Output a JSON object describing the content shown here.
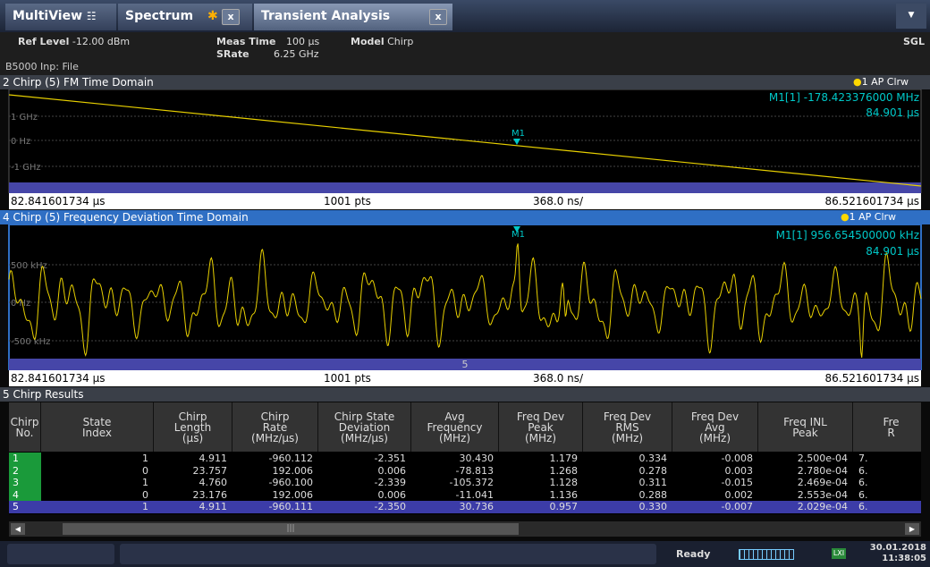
{
  "tabs": [
    "MultiView",
    "Spectrum",
    "Transient Analysis"
  ],
  "info": {
    "ref_level_label": "Ref Level",
    "ref_level": "-12.00 dBm",
    "meas_time_label": "Meas Time",
    "meas_time": "100 µs",
    "model_label": "Model",
    "model": "Chirp",
    "srate_label": "SRate",
    "srate": "6.25 GHz",
    "mode": "SGL",
    "input": "B5000 Inp: File"
  },
  "windows": [
    {
      "title": "2 Chirp (5) FM Time Domain",
      "trace": "1 AP Clrw",
      "marker_name": "M1[1]",
      "marker_value": "-178.423376000 MHz",
      "marker_time": "84.901 µs",
      "y_labels": [
        "1 GHz",
        "0 Hz",
        "-1 GHz"
      ],
      "marker_label": "M1",
      "x_start": "82.841601734 µs",
      "points": "1001 pts",
      "x_div": "368.0 ns/",
      "x_stop": "86.521601734 µs"
    },
    {
      "title": "4 Chirp (5) Frequency Deviation Time Domain",
      "trace": "1 AP Clrw",
      "marker_name": "M1[1]",
      "marker_value": "956.654500000 kHz",
      "marker_time": "84.901 µs",
      "y_labels": [
        "500 kHz",
        "0 Hz",
        "-500 kHz"
      ],
      "marker_label": "M1",
      "bar_label": "5",
      "x_start": "82.841601734 µs",
      "points": "1001 pts",
      "x_div": "368.0 ns/",
      "x_stop": "86.521601734 µs"
    }
  ],
  "results": {
    "title": "5 Chirp Results",
    "headers": [
      [
        "Chirp",
        "No."
      ],
      [
        "State",
        "Index"
      ],
      [
        "Chirp",
        "Length",
        "(µs)"
      ],
      [
        "Chirp",
        "Rate",
        "(MHz/µs)"
      ],
      [
        "Chirp State",
        "Deviation",
        "(MHz/µs)"
      ],
      [
        "Avg",
        "Frequency",
        "(MHz)"
      ],
      [
        "Freq Dev",
        "Peak",
        "(MHz)"
      ],
      [
        "Freq Dev",
        "RMS",
        "(MHz)"
      ],
      [
        "Freq Dev",
        "Avg",
        "(MHz)"
      ],
      [
        "Freq INL",
        "Peak"
      ],
      [
        "Fre",
        "R"
      ]
    ],
    "rows": [
      [
        "1",
        "1",
        "4.911",
        "-960.112",
        "-2.351",
        "30.430",
        "1.179",
        "0.334",
        "-0.008",
        "2.500e-04",
        "7."
      ],
      [
        "2",
        "0",
        "23.757",
        "192.006",
        "0.006",
        "-78.813",
        "1.268",
        "0.278",
        "0.003",
        "2.780e-04",
        "6."
      ],
      [
        "3",
        "1",
        "4.760",
        "-960.100",
        "-2.339",
        "-105.372",
        "1.128",
        "0.311",
        "-0.015",
        "2.469e-04",
        "6."
      ],
      [
        "4",
        "0",
        "23.176",
        "192.006",
        "0.006",
        "-11.041",
        "1.136",
        "0.288",
        "0.002",
        "2.553e-04",
        "6."
      ],
      [
        "5",
        "1",
        "4.911",
        "-960.111",
        "-2.350",
        "30.736",
        "0.957",
        "0.330",
        "-0.007",
        "2.029e-04",
        "6."
      ]
    ]
  },
  "status": {
    "state": "Ready",
    "date": "30.01.2018",
    "time": "11:38:05"
  }
}
